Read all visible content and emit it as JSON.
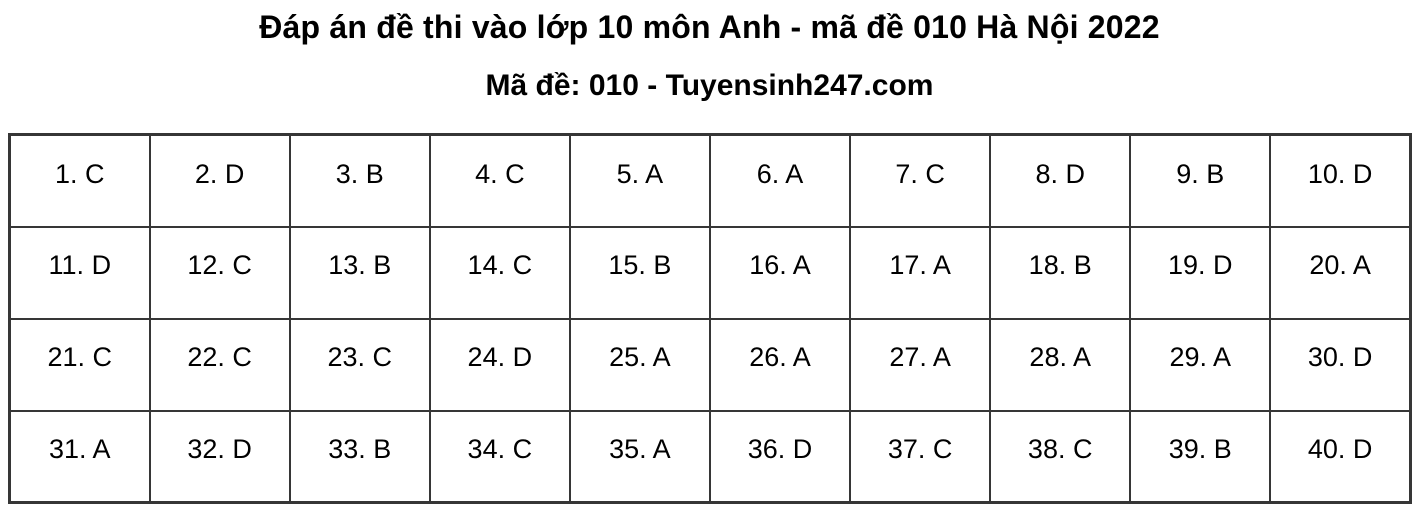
{
  "title": "Đáp án đề thi vào lớp 10 môn Anh - mã đề 010 Hà Nội 2022",
  "subtitle": "Mã đề: 010 - Tuyensinh247.com",
  "answer_table": {
    "columns": 10,
    "answer_separator": ". ",
    "answers": [
      {
        "q": "1",
        "a": "C"
      },
      {
        "q": "2",
        "a": "D"
      },
      {
        "q": "3",
        "a": "B"
      },
      {
        "q": "4",
        "a": "C"
      },
      {
        "q": "5",
        "a": "A"
      },
      {
        "q": "6",
        "a": "A"
      },
      {
        "q": "7",
        "a": "C"
      },
      {
        "q": "8",
        "a": "D"
      },
      {
        "q": "9",
        "a": "B"
      },
      {
        "q": "10",
        "a": "D"
      },
      {
        "q": "11",
        "a": "D"
      },
      {
        "q": "12",
        "a": "C"
      },
      {
        "q": "13",
        "a": "B"
      },
      {
        "q": "14",
        "a": "C"
      },
      {
        "q": "15",
        "a": "B"
      },
      {
        "q": "16",
        "a": "A"
      },
      {
        "q": "17",
        "a": "A"
      },
      {
        "q": "18",
        "a": "B"
      },
      {
        "q": "19",
        "a": "D"
      },
      {
        "q": "20",
        "a": "A"
      },
      {
        "q": "21",
        "a": "C"
      },
      {
        "q": "22",
        "a": "C"
      },
      {
        "q": "23",
        "a": "C"
      },
      {
        "q": "24",
        "a": "D"
      },
      {
        "q": "25",
        "a": "A"
      },
      {
        "q": "26",
        "a": "A"
      },
      {
        "q": "27",
        "a": "A"
      },
      {
        "q": "28",
        "a": "A"
      },
      {
        "q": "29",
        "a": "A"
      },
      {
        "q": "30",
        "a": "D"
      },
      {
        "q": "31",
        "a": "A"
      },
      {
        "q": "32",
        "a": "D"
      },
      {
        "q": "33",
        "a": "B"
      },
      {
        "q": "34",
        "a": "C"
      },
      {
        "q": "35",
        "a": "A"
      },
      {
        "q": "36",
        "a": "D"
      },
      {
        "q": "37",
        "a": "C"
      },
      {
        "q": "38",
        "a": "C"
      },
      {
        "q": "39",
        "a": "B"
      },
      {
        "q": "40",
        "a": "D"
      }
    ]
  },
  "colors": {
    "border": "#363636",
    "text": "#000000",
    "background": "#ffffff"
  }
}
